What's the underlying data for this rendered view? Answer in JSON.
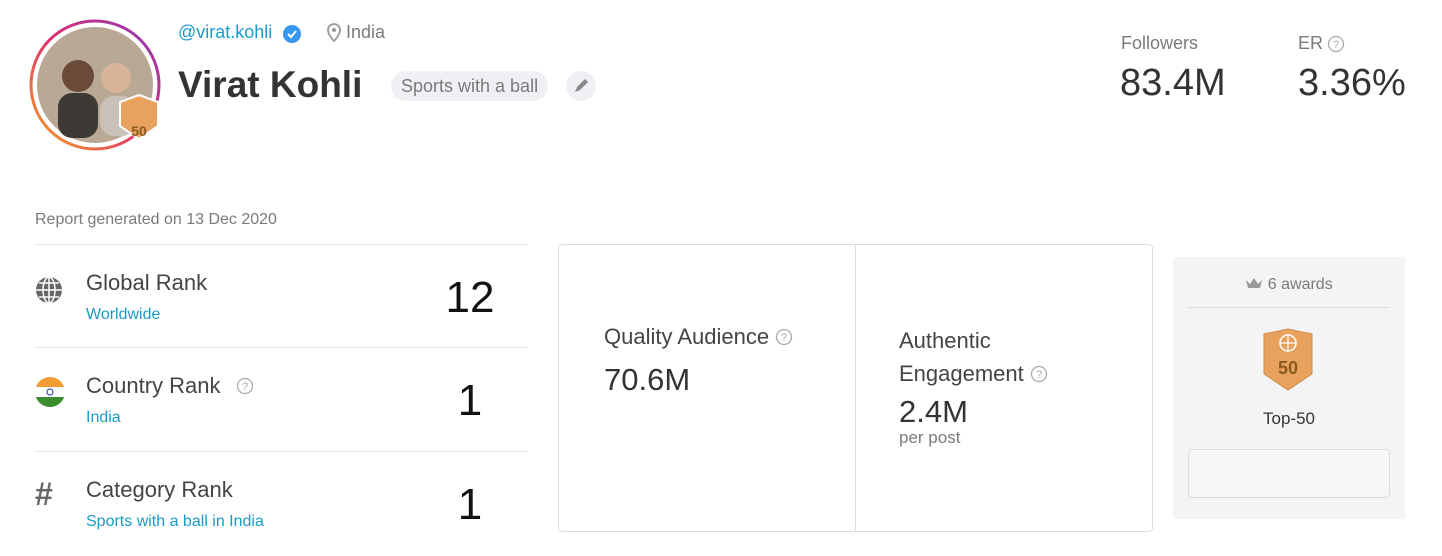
{
  "profile": {
    "handle": "@virat.kohli",
    "location": "India",
    "name": "Virat Kohli",
    "category": "Sports with a ball",
    "badge": 50
  },
  "stats": [
    {
      "label": "Followers",
      "value": "83.4M"
    },
    {
      "label": "ER",
      "value": "3.36%"
    }
  ],
  "report": "Report generated on 13 Dec 2020",
  "ranks": [
    {
      "label": "Global Rank",
      "sub": "Worldwide",
      "value": 12
    },
    {
      "label": "Country Rank",
      "sub": "India",
      "value": 1
    },
    {
      "label": "Category Rank",
      "sub": "Sports with a ball in India",
      "value": 1
    }
  ],
  "quality": {
    "label": "Quality Audience",
    "value": "70.6M"
  },
  "authentic": {
    "label": "Authentic Engagement",
    "value": "2.4M",
    "note": "per post"
  },
  "awards": {
    "count": "6 awards",
    "badge": 50,
    "label": "Top-50"
  }
}
